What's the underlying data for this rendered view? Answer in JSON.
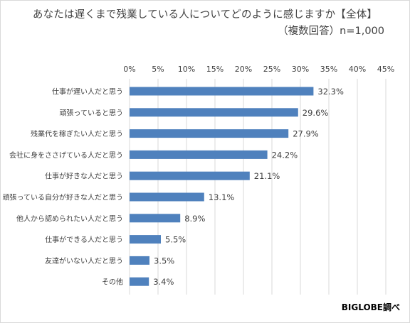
{
  "title": "あなたは遅くまで残業している人についてどのように感じますか【全体】",
  "subtitle": "（複数回答）n=1,000",
  "credit": "BIGLOBE調べ",
  "colors": {
    "bar": "#4f81bd",
    "grid": "#d9d9d9",
    "text": "#404040"
  },
  "chart_data": {
    "type": "bar",
    "orientation": "horizontal",
    "title": "あなたは遅くまで残業している人についてどのように感じますか【全体】",
    "subtitle": "（複数回答）n=1,000",
    "categories": [
      "仕事が遅い人だと思う",
      "頑張っていると思う",
      "残業代を稼ぎたい人だと思う",
      "会社に身をささげている人だと思う",
      "仕事が好きな人だと思う",
      "頑張っている自分が好きな人だと思う",
      "他人から認められたい人だと思う",
      "仕事ができる人だと思う",
      "友達がいない人だと思う",
      "その他"
    ],
    "values": [
      32.3,
      29.6,
      27.9,
      24.2,
      21.1,
      13.1,
      8.9,
      5.5,
      3.5,
      3.4
    ],
    "data_labels": [
      "32.3%",
      "29.6%",
      "27.9%",
      "24.2%",
      "21.1%",
      "13.1%",
      "8.9%",
      "5.5%",
      "3.5%",
      "3.4%"
    ],
    "xlim": [
      0,
      45
    ],
    "ticks": [
      0,
      5,
      10,
      15,
      20,
      25,
      30,
      35,
      40,
      45
    ],
    "tick_labels": [
      "0%",
      "5%",
      "10%",
      "15%",
      "20%",
      "25%",
      "30%",
      "35%",
      "40%",
      "45%"
    ],
    "axis_position": "top",
    "grid": true,
    "legend": "none"
  }
}
